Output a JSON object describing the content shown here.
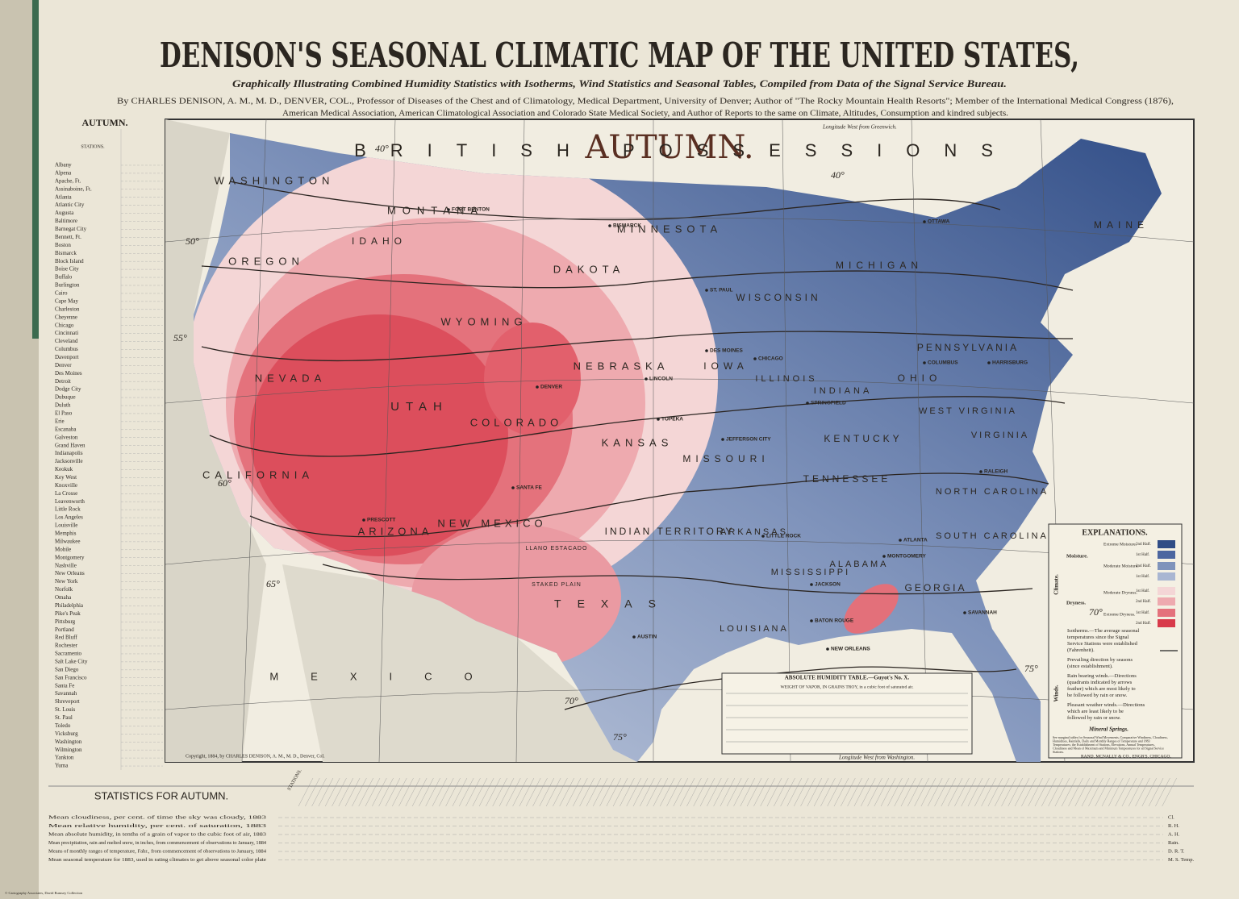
{
  "header": {
    "title": "DENISON'S SEASONAL CLIMATIC MAP OF THE UNITED STATES,",
    "subtitle": "Graphically Illustrating Combined Humidity Statistics with Isotherms, Wind Statistics and Seasonal Tables, Compiled from Data of the Signal Service Bureau.",
    "author_line_1": "By CHARLES DENISON, A. M., M. D., DENVER, COL., Professor of Diseases of the Chest and of Climatology, Medical Department, University of Denver; Author of \"The Rocky Mountain Health Resorts\"; Member of the International Medical Congress (1876),",
    "author_line_2": "American Medical Association, American Climatological Association and Colorado State Medical Society, and Author of Reports to the same on Climate, Altitudes, Consumption and kindred subjects."
  },
  "station_table": {
    "heading": "AUTUMN.",
    "column_label": "STATIONS.",
    "stations": [
      "Albany",
      "Alpena",
      "Apache, Ft.",
      "Assinaboine, Ft.",
      "Atlanta",
      "Atlantic City",
      "Augusta",
      "Baltimore",
      "Barnegat City",
      "Bennett, Ft.",
      "Boston",
      "Bismarck",
      "Block Island",
      "Boise City",
      "Buffalo",
      "Burlington",
      "Cairo",
      "Cape May",
      "Charleston",
      "Cheyenne",
      "Chicago",
      "Cincinnati",
      "Cleveland",
      "Columbus",
      "Davenport",
      "Denver",
      "Des Moines",
      "Detroit",
      "Dodge City",
      "Dubuque",
      "Duluth",
      "El Paso",
      "Erie",
      "Escanaba",
      "Galveston",
      "Grand Haven",
      "Indianapolis",
      "Jacksonville",
      "Keokuk",
      "Key West",
      "Knoxville",
      "La Crosse",
      "Leavenworth",
      "Little Rock",
      "Los Angeles",
      "Louisville",
      "Memphis",
      "Milwaukee",
      "Mobile",
      "Montgomery",
      "Nashville",
      "New Orleans",
      "New York",
      "Norfolk",
      "Omaha",
      "Philadelphia",
      "Pike's Peak",
      "Pittsburg",
      "Portland",
      "Red Bluff",
      "Rochester",
      "Sacramento",
      "Salt Lake City",
      "San Diego",
      "San Francisco",
      "Santa Fe",
      "Savannah",
      "Shreveport",
      "St. Louis",
      "St. Paul",
      "Toledo",
      "Vicksburg",
      "Washington",
      "Wilmington",
      "Yankton",
      "Yuma"
    ]
  },
  "map": {
    "season_title": "AUTUMN.",
    "regions": [
      "BRITISH POSSESSIONS",
      "WASHINGTON",
      "MONTANA",
      "DAKOTA",
      "MINNESOTA",
      "OREGON",
      "IDAHO",
      "WYOMING",
      "NEBRASKA",
      "IOWA",
      "WISCONSIN",
      "MICHIGAN",
      "NEVADA",
      "UTAH",
      "COLORADO",
      "KANSAS",
      "MISSOURI",
      "ILLINOIS",
      "INDIANA",
      "OHIO",
      "PENNSYLVANIA",
      "CALIFORNIA",
      "ARIZONA",
      "NEW MEXICO",
      "INDIAN TERRITORY",
      "ARKANSAS",
      "TENNESSEE",
      "KENTUCKY",
      "TEXAS",
      "MISSISSIPPI",
      "ALABAMA",
      "GEORGIA",
      "SOUTH CAROLINA",
      "NORTH CAROLINA",
      "WEST VIRGINIA",
      "MAINE",
      "MEXICO",
      "LLANO ESTACADO",
      "STAKED PLAIN",
      "LOUISIANA",
      "VIRGINIA"
    ],
    "cities": [
      "DENVER",
      "CHICAGO",
      "SPRINGFIELD",
      "TOPEKA",
      "LINCOLN",
      "ST. PAUL",
      "BISMARCK",
      "OTTAWA",
      "COLUMBUS",
      "HARRISBURG",
      "RALEIGH",
      "ATLANTA",
      "MONTGOMERY",
      "JACKSON",
      "LITTLE ROCK",
      "AUSTIN",
      "BATON ROUGE",
      "NEW ORLEANS",
      "JEFFERSON CITY",
      "SANTA FE",
      "PRESCOTT",
      "DES MOINES",
      "FORT BENTON",
      "SAVANNAH"
    ],
    "isotherms": [
      "40°",
      "40°",
      "50°",
      "55°",
      "60°",
      "65°",
      "70°",
      "70°",
      "75°",
      "75°"
    ],
    "top_axis_label": "Longitude West from Greenwich.",
    "bottom_axis_label": "Longitude West from Washington.",
    "copyright": "Copyright, 1884, by CHARLES DENISON, A. M., M. D., Denver, Col.",
    "engraver": "RAND, MCNALLY & CO., ENGR'S, CHICAGO."
  },
  "humidity_table": {
    "title": "ABSOLUTE HUMIDITY TABLE.—Guyot's No. X.",
    "subtitle": "WEIGHT OF VAPOR, IN GRAINS TROY, in a cubic foot of saturated air."
  },
  "legend": {
    "title": "EXPLANATIONS.",
    "climate": "Climate.",
    "moisture": "Moisture.",
    "dryness": "Dryness.",
    "classes": [
      "Extreme Moisture.",
      "Moderate Moisture.",
      "Moderate Dryness.",
      "Extreme Dryness."
    ],
    "halves": [
      "2nd Half.",
      "1st Half.",
      "2nd Half.",
      "1st Half.",
      "1st Half.",
      "2nd Half.",
      "1st Half.",
      "2nd Half."
    ],
    "winds": "Winds.",
    "isotherms": "Isotherms.—The average seasonal temperatures since the Signal Service Stations were established (Fahrenheit).",
    "prevailing": "Prevailing direction by seasons (since establishment).",
    "rain_bearing": "Rain bearing winds.—Directions (quadrants indicated by arrows feather) which are most likely to be followed by rain or snow.",
    "pleasant": "Pleasant weather winds.—Directions which are least likely to be followed by rain or snow.",
    "mineral": "Mineral Springs.",
    "note": "See marginal tables for Seasonal Wind Movements, Comparative Windiness, Cloudiness, Humidities, Rainfalls, Daily and Monthly Ranges of Temperature and 1883 Temperatures; the Establishment of Stations, Elevations, Annual Temperatures, Cloudiness and Mean of Maximum and Minimum Temperatures for all Signal Service Stations."
  },
  "statistics": {
    "title": "STATISTICS FOR AUTUMN.",
    "stations_label": "STATIONS.",
    "rows": [
      {
        "label": "Mean cloudiness, per cent. of time the sky was cloudy, 1883",
        "code": "Cl."
      },
      {
        "label": "Mean relative humidity, per cent. of saturation, 1883",
        "code": "R. H."
      },
      {
        "label": "Mean absolute humidity, in tenths of a grain of vapor to the cubic foot of air, 1883",
        "code": "A. H."
      },
      {
        "label": "Mean precipitation, rain and melted snow, in inches, from commencement of observations to January, 1884",
        "code": "Rain."
      },
      {
        "label": "Means of monthly ranges of temperature, Fahr., from commencement of observations to January, 1884",
        "code": "D. R. T."
      },
      {
        "label": "Mean seasonal temperature for 1883, used in rating climates to get above seasonal color plate",
        "code": "M. S. Temp."
      }
    ]
  },
  "footer": {
    "credit": "© Cartography Associates, David Rumsey Collection"
  }
}
